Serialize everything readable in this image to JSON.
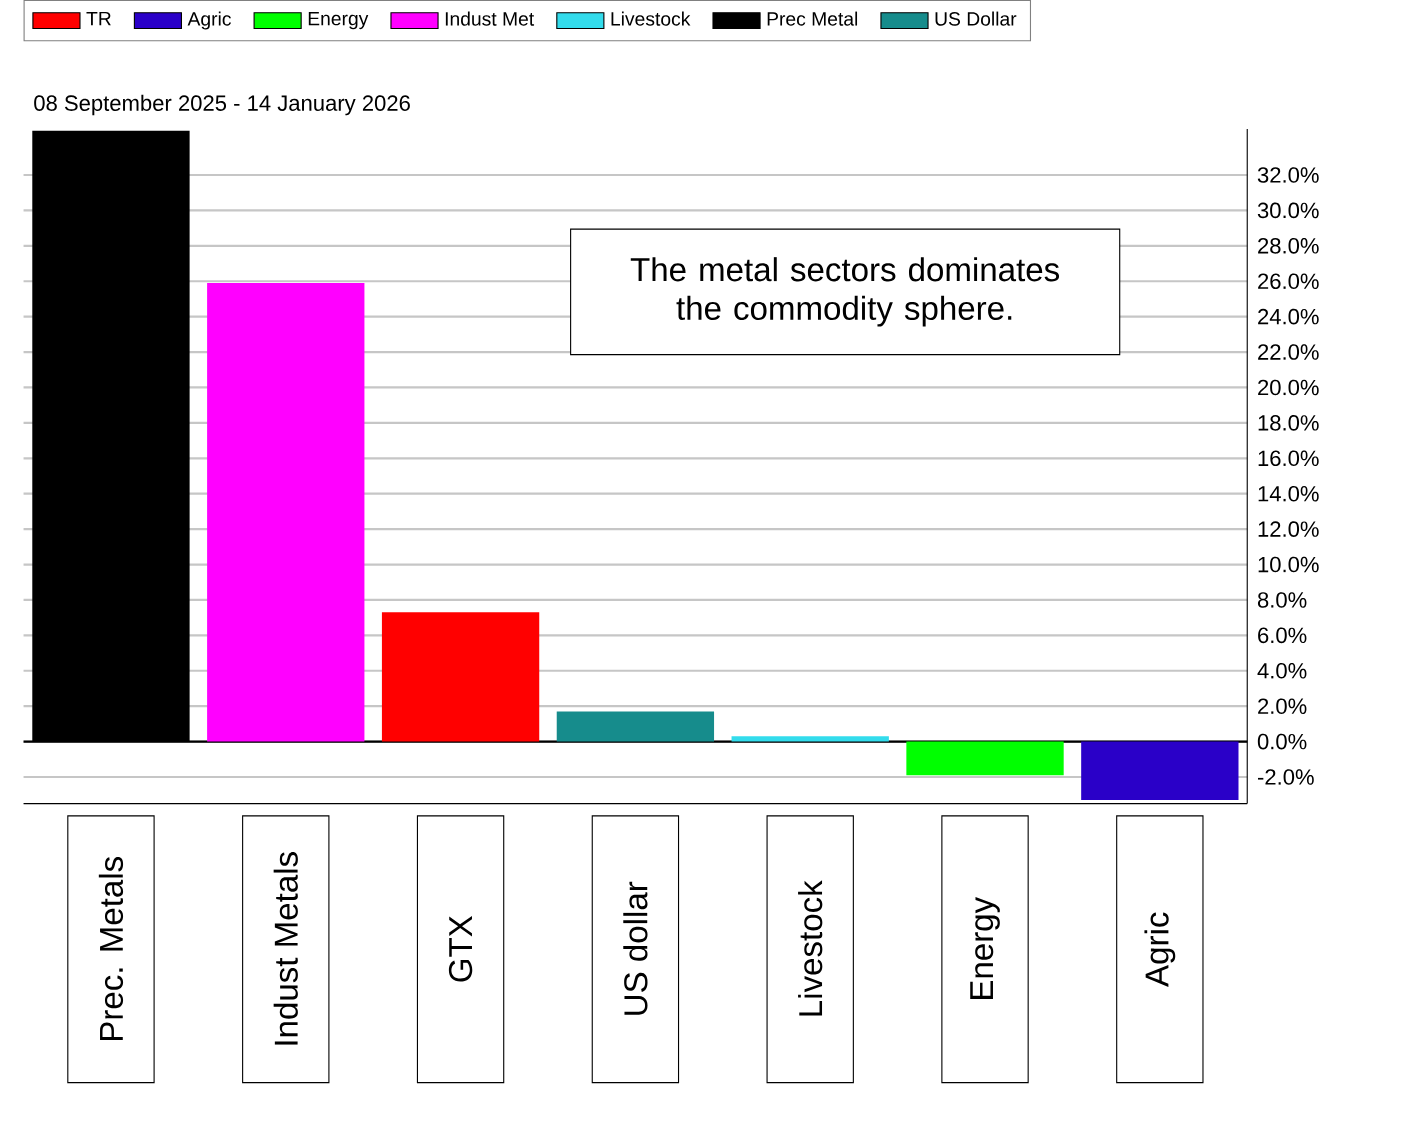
{
  "chart_data": {
    "type": "bar",
    "subtitle": "08 September 2025 - 14 January 2026",
    "categories": [
      "Prec. Metals",
      "Indust Metals",
      "GTX",
      "US dollar",
      "Livestock",
      "Energy",
      "Agric"
    ],
    "series": [
      {
        "name": "TR",
        "color": "#ff0000",
        "values": [
          null,
          null,
          7.3,
          null,
          null,
          null,
          null
        ]
      },
      {
        "name": "Agric",
        "color": "#2a00c8",
        "values": [
          null,
          null,
          null,
          null,
          null,
          null,
          -3.3
        ]
      },
      {
        "name": "Energy",
        "color": "#00ff00",
        "values": [
          null,
          null,
          null,
          null,
          null,
          -1.9,
          null
        ]
      },
      {
        "name": "Indust Met",
        "color": "#ff00ff",
        "values": [
          null,
          25.9,
          null,
          null,
          null,
          null,
          null
        ]
      },
      {
        "name": "Livestock",
        "color": "#33dcec",
        "values": [
          null,
          null,
          null,
          null,
          0.3,
          null,
          null
        ]
      },
      {
        "name": "Prec Metal",
        "color": "#000000",
        "values": [
          34.5,
          null,
          null,
          null,
          null,
          null,
          null
        ]
      },
      {
        "name": "US Dollar",
        "color": "#168c8c",
        "values": [
          null,
          null,
          null,
          1.7,
          null,
          null,
          null
        ]
      }
    ],
    "ylim": [
      -3.5,
      34.6
    ],
    "yticks": [
      {
        "value": -2,
        "label": "-2.0%"
      },
      {
        "value": 0,
        "label": "0.0%"
      },
      {
        "value": 2,
        "label": "2.0%"
      },
      {
        "value": 4,
        "label": "4.0%"
      },
      {
        "value": 6,
        "label": "6.0%"
      },
      {
        "value": 8,
        "label": "8.0%"
      },
      {
        "value": 10,
        "label": "10.0%"
      },
      {
        "value": 12,
        "label": "12.0%"
      },
      {
        "value": 14,
        "label": "14.0%"
      },
      {
        "value": 16,
        "label": "16.0%"
      },
      {
        "value": 18,
        "label": "18.0%"
      },
      {
        "value": 20,
        "label": "20.0%"
      },
      {
        "value": 22,
        "label": "22.0%"
      },
      {
        "value": 24,
        "label": "24.0%"
      },
      {
        "value": 26,
        "label": "26.0%"
      },
      {
        "value": 28,
        "label": "28.0%"
      },
      {
        "value": 30,
        "label": "30.0%"
      },
      {
        "value": 32,
        "label": "32.0%"
      }
    ],
    "grid": "y",
    "legend": "top left",
    "annotations": [
      "The metal sectors dominates the commodity sphere."
    ]
  }
}
